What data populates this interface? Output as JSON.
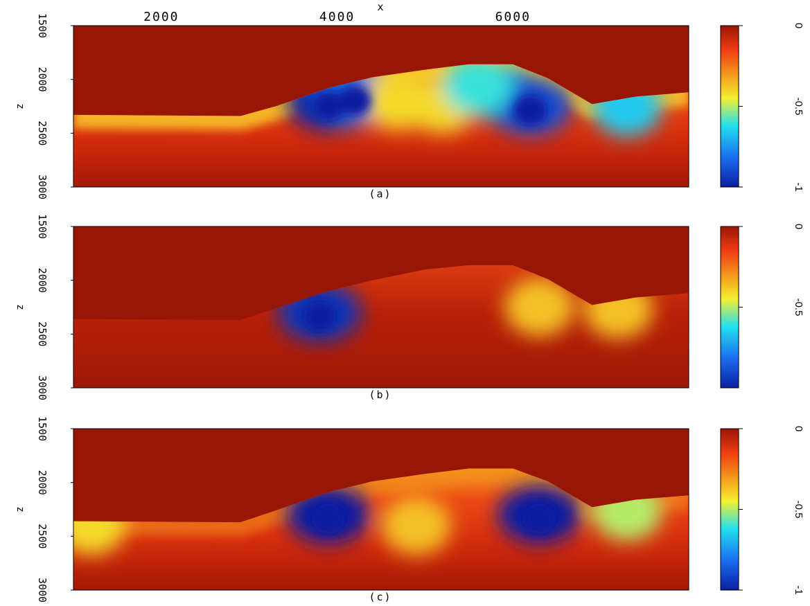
{
  "chart_data": {
    "type": "heatmap",
    "xlabel": "x",
    "x_ticks": [
      "2000",
      "4000",
      "6000"
    ],
    "x_tick_values": [
      2000,
      4000,
      6000
    ],
    "xlim": [
      1000,
      8000
    ],
    "zlim": [
      1500,
      3000
    ],
    "z_tick_values": [
      1500,
      2000,
      2500,
      3000
    ],
    "colormap": [
      "#0a1fa0",
      "#1a6cf0",
      "#22e0ee",
      "#f4f030",
      "#f5a21e",
      "#ee3d12",
      "#9a1605"
    ],
    "background_color": "#981605",
    "panels": [
      {
        "label": "(a)",
        "ylabel": "z",
        "y_ticks": [
          "1500",
          "2000",
          "2500",
          "3000"
        ],
        "colorbar_ticks": [
          "0",
          "-0.5",
          "-1"
        ],
        "colorbar_values": [
          0,
          -0.5,
          -1
        ],
        "top_surface": [
          [
            1000,
            2330
          ],
          [
            2900,
            2340
          ],
          [
            3300,
            2250
          ],
          [
            3900,
            2080
          ],
          [
            4400,
            1980
          ],
          [
            5000,
            1910
          ],
          [
            5500,
            1860
          ],
          [
            6000,
            1860
          ],
          [
            6400,
            1990
          ],
          [
            6900,
            2230
          ],
          [
            7400,
            2160
          ],
          [
            8000,
            2120
          ]
        ],
        "anomalies": [
          {
            "x": 3900,
            "z": 2210,
            "value": -1.0
          },
          {
            "x": 4200,
            "z": 2160,
            "value": -0.85
          },
          {
            "x": 5900,
            "z": 2140,
            "value": -0.78
          },
          {
            "x": 6200,
            "z": 2250,
            "value": -0.9
          },
          {
            "x": 7300,
            "z": 2260,
            "value": -0.7
          },
          {
            "x": 4700,
            "z": 2200,
            "value": -0.45
          },
          {
            "x": 5200,
            "z": 2230,
            "value": -0.45
          },
          {
            "x": 5600,
            "z": 2060,
            "value": -0.65
          }
        ]
      },
      {
        "label": "(b)",
        "ylabel": "z",
        "y_ticks": [
          "1500",
          "2000",
          "2500",
          "3000"
        ],
        "colorbar_ticks": [
          "0",
          "-0.5"
        ],
        "colorbar_values": [
          0,
          -0.5
        ],
        "top_surface": [
          [
            1000,
            2360
          ],
          [
            2900,
            2370
          ],
          [
            3300,
            2260
          ],
          [
            3900,
            2100
          ],
          [
            4400,
            2000
          ],
          [
            5000,
            1900
          ],
          [
            5500,
            1860
          ],
          [
            6000,
            1860
          ],
          [
            6400,
            1990
          ],
          [
            6900,
            2230
          ],
          [
            7400,
            2160
          ],
          [
            8000,
            2120
          ]
        ],
        "anomalies": [
          {
            "x": 3800,
            "z": 2300,
            "value": -0.95
          },
          {
            "x": 6300,
            "z": 2250,
            "value": -0.4
          },
          {
            "x": 7200,
            "z": 2270,
            "value": -0.4
          }
        ]
      },
      {
        "label": "(c)",
        "ylabel": "z",
        "y_ticks": [
          "1500",
          "2000",
          "2500",
          "3000"
        ],
        "colorbar_ticks": [
          "0",
          "-0.5",
          "-1"
        ],
        "colorbar_values": [
          0,
          -0.5,
          -1
        ],
        "top_surface": [
          [
            1000,
            2360
          ],
          [
            2900,
            2370
          ],
          [
            3300,
            2260
          ],
          [
            3900,
            2090
          ],
          [
            4400,
            1990
          ],
          [
            5000,
            1920
          ],
          [
            5500,
            1870
          ],
          [
            6000,
            1870
          ],
          [
            6400,
            1990
          ],
          [
            6900,
            2230
          ],
          [
            7400,
            2160
          ],
          [
            8000,
            2120
          ]
        ],
        "anomalies": [
          {
            "x": 3900,
            "z": 2300,
            "value": -1.0
          },
          {
            "x": 6300,
            "z": 2300,
            "value": -1.0
          },
          {
            "x": 7300,
            "z": 2270,
            "value": -0.55
          },
          {
            "x": 4900,
            "z": 2400,
            "value": -0.4
          },
          {
            "x": 1200,
            "z": 2400,
            "value": -0.45
          }
        ]
      }
    ]
  }
}
